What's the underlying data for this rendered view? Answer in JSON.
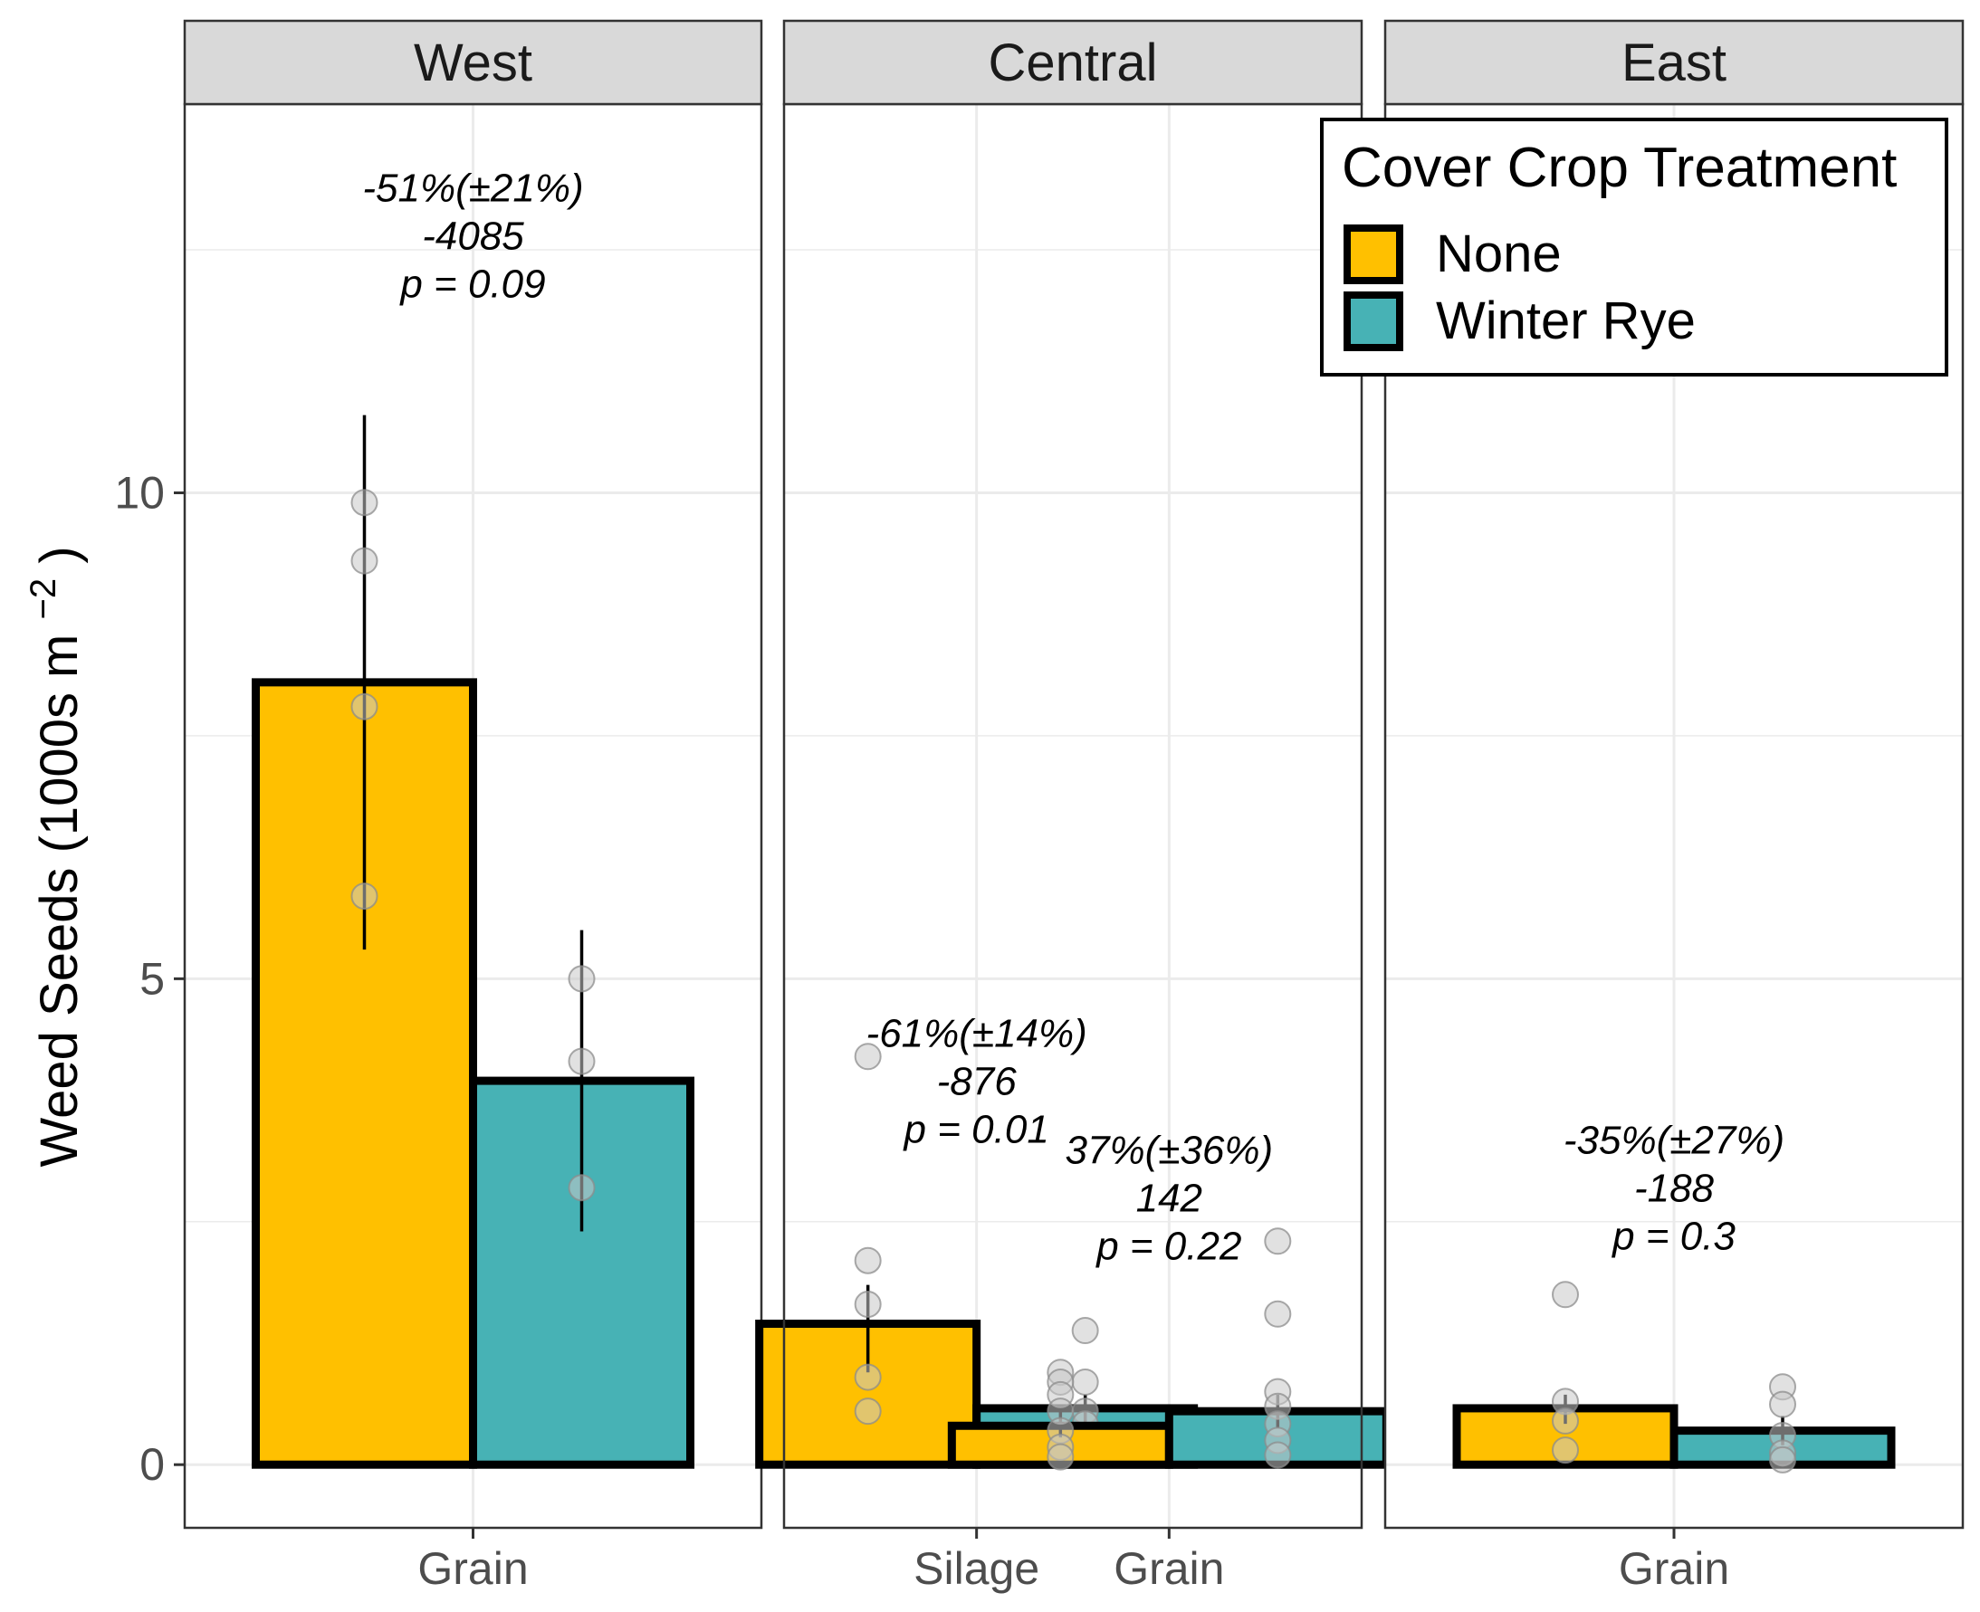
{
  "chart_data": {
    "type": "bar",
    "ylabel": "Weed Seeds (1000s m",
    "ylabel_superscript": "−2",
    "ylabel_close": ")",
    "ylim": [
      -0.65,
      14
    ],
    "y_ticks": [
      0,
      5,
      10
    ],
    "grid": true,
    "colors": {
      "None": "#FFC000",
      "Winter Rye": "#47B2B5"
    },
    "legend": {
      "title": "Cover Crop Treatment",
      "placement": "top-right",
      "entries": [
        "None",
        "Winter Rye"
      ]
    },
    "panels": [
      {
        "name": "West",
        "groups": [
          {
            "category": "Grain",
            "bars": [
              {
                "series": "None",
                "value": 8.05,
                "err_low": 5.3,
                "err_high": 10.8,
                "points": [
                  9.9,
                  9.3,
                  7.8,
                  5.85
                ]
              },
              {
                "series": "Winter Rye",
                "value": 3.95,
                "err_low": 2.4,
                "err_high": 5.5,
                "points": [
                  5.0,
                  4.15,
                  2.85
                ]
              }
            ],
            "annotation": [
              "-51%(±21%)",
              "-4085",
              "p = 0.09"
            ],
            "annotation_y": 13.0
          }
        ]
      },
      {
        "name": "Central",
        "groups": [
          {
            "category": "Silage",
            "bars": [
              {
                "series": "None",
                "value": 1.45,
                "err_low": 0.95,
                "err_high": 1.85,
                "points": [
                  4.2,
                  2.1,
                  1.65,
                  0.9,
                  0.55
                ]
              },
              {
                "series": "Winter Rye",
                "value": 0.58,
                "err_low": 0.42,
                "err_high": 0.72,
                "points": [
                  1.38,
                  0.85,
                  0.55,
                  0.42,
                  0.28
                ]
              }
            ],
            "annotation": [
              "-61%(±14%)",
              "-876",
              "p = 0.01"
            ],
            "annotation_y": 4.3
          },
          {
            "category": "Grain",
            "bars": [
              {
                "series": "None",
                "value": 0.4,
                "err_low": 0.28,
                "err_high": 0.55,
                "points": [
                  0.95,
                  0.85,
                  0.72,
                  0.55,
                  0.35,
                  0.18,
                  0.08
                ]
              },
              {
                "series": "Winter Rye",
                "value": 0.55,
                "err_low": 0.38,
                "err_high": 0.72,
                "points": [
                  2.3,
                  1.55,
                  0.75,
                  0.6,
                  0.42,
                  0.25,
                  0.1
                ]
              }
            ],
            "annotation": [
              "37%(±36%)",
              "142",
              "p = 0.22"
            ],
            "annotation_y": 3.1
          }
        ]
      },
      {
        "name": "East",
        "groups": [
          {
            "category": "Grain",
            "bars": [
              {
                "series": "None",
                "value": 0.58,
                "err_low": 0.42,
                "err_high": 0.72,
                "points": [
                  1.75,
                  0.65,
                  0.45,
                  0.15
                ]
              },
              {
                "series": "Winter Rye",
                "value": 0.35,
                "err_low": 0.2,
                "err_high": 0.5,
                "points": [
                  0.8,
                  0.62,
                  0.3,
                  0.12,
                  0.05
                ]
              }
            ],
            "annotation": [
              "-35%(±27%)",
              "-188",
              "p = 0.3"
            ],
            "annotation_y": 3.2
          }
        ]
      }
    ]
  }
}
